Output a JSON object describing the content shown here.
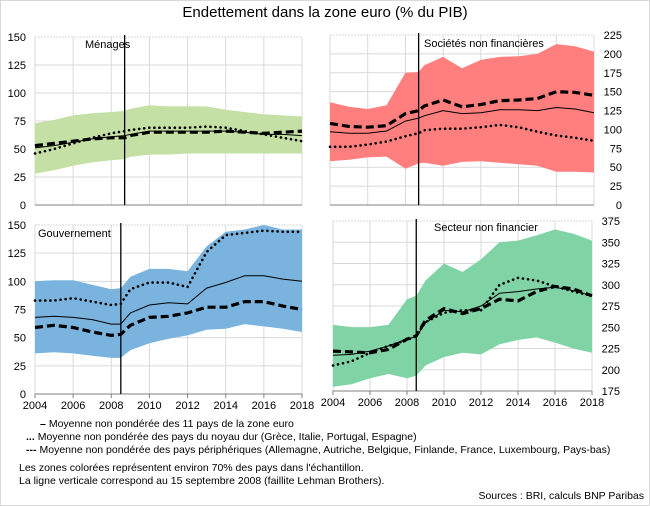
{
  "title": "Endettement dans la zone euro (% du PIB)",
  "chart_data": [
    {
      "type": "area",
      "title": "Ménages",
      "x_ticks": [
        2004,
        2006,
        2008,
        2010,
        2012,
        2014,
        2016,
        2018
      ],
      "y_ticks": [
        0,
        25,
        50,
        75,
        100,
        125,
        150
      ],
      "xlim": [
        2004,
        2018
      ],
      "ylim": [
        0,
        150
      ],
      "y_axis_side": "left",
      "x_tick_labels_shown": false,
      "grid": true,
      "band_color": "#c5e0a5",
      "vertical_line_x": 2008.7,
      "x": [
        2004,
        2005,
        2006,
        2007,
        2008,
        2008.7,
        2009,
        2010,
        2011,
        2012,
        2013,
        2014,
        2015,
        2016,
        2017,
        2018
      ],
      "band_upper": [
        73,
        76,
        80,
        82,
        83,
        84,
        86,
        89,
        88,
        88,
        88,
        85,
        83,
        81,
        80,
        79
      ],
      "band_lower": [
        28,
        31,
        35,
        38,
        40,
        41,
        43,
        45,
        45,
        46,
        46,
        46,
        46,
        46,
        46,
        46
      ],
      "series": [
        {
          "name": "Moyenne non pondérée des 11 pays de la zone euro",
          "style": "solid",
          "values": [
            51,
            53,
            56,
            59,
            61,
            62,
            63,
            66,
            66,
            66,
            66,
            66,
            65,
            63,
            63,
            62
          ]
        },
        {
          "name": "Moyenne non pondérée des pays du noyau dur",
          "style": "dotted",
          "values": [
            46,
            50,
            55,
            60,
            64,
            66,
            67,
            69,
            69,
            69,
            70,
            69,
            66,
            63,
            60,
            57
          ]
        },
        {
          "name": "Moyenne non pondérée des pays périphériques",
          "style": "dashed",
          "values": [
            53,
            55,
            57,
            59,
            60,
            60,
            62,
            65,
            65,
            65,
            65,
            66,
            65,
            64,
            65,
            66
          ]
        }
      ]
    },
    {
      "type": "area",
      "title": "Sociétés non  financières",
      "x_ticks": [
        2004,
        2006,
        2008,
        2010,
        2012,
        2014,
        2016,
        2018
      ],
      "y_ticks": [
        0,
        25,
        50,
        75,
        100,
        125,
        150,
        175,
        200,
        225
      ],
      "xlim": [
        2004,
        2018
      ],
      "ylim": [
        0,
        225
      ],
      "y_axis_side": "right",
      "x_tick_labels_shown": false,
      "grid": true,
      "band_color": "#ff7f7f",
      "vertical_line_x": 2008.7,
      "x": [
        2004,
        2005,
        2006,
        2007,
        2008,
        2008.7,
        2009,
        2010,
        2011,
        2012,
        2013,
        2014,
        2015,
        2016,
        2017,
        2018
      ],
      "band_upper": [
        136,
        130,
        127,
        132,
        175,
        176,
        185,
        196,
        181,
        192,
        196,
        197,
        200,
        213,
        210,
        203
      ],
      "band_lower": [
        58,
        60,
        63,
        64,
        48,
        55,
        56,
        52,
        57,
        58,
        56,
        54,
        52,
        44,
        44,
        43
      ],
      "series": [
        {
          "name": "Moyenne non pondérée des 11 pays de la zone euro",
          "style": "solid",
          "values": [
            97,
            95,
            95,
            98,
            111,
            115,
            118,
            125,
            121,
            122,
            126,
            126,
            125,
            129,
            127,
            122
          ]
        },
        {
          "name": "Moyenne non pondérée des pays du noyau dur",
          "style": "dotted",
          "values": [
            77,
            77,
            80,
            84,
            91,
            95,
            99,
            101,
            101,
            103,
            106,
            103,
            97,
            92,
            89,
            85
          ]
        },
        {
          "name": "Moyenne non pondérée des pays périphériques",
          "style": "dashed",
          "values": [
            108,
            104,
            103,
            105,
            121,
            125,
            131,
            139,
            130,
            133,
            138,
            139,
            141,
            150,
            149,
            145
          ]
        }
      ]
    },
    {
      "type": "area",
      "title": "Gouvernement",
      "x_ticks": [
        2004,
        2006,
        2008,
        2010,
        2012,
        2014,
        2016,
        2018
      ],
      "y_ticks": [
        0,
        25,
        50,
        75,
        100,
        125,
        150
      ],
      "xlim": [
        2004,
        2018
      ],
      "ylim": [
        0,
        150
      ],
      "y_axis_side": "left",
      "x_tick_labels_shown": true,
      "grid": true,
      "band_color": "#79b3de",
      "vertical_line_x": 2008.5,
      "x": [
        2004,
        2005,
        2006,
        2007,
        2008,
        2008.5,
        2009,
        2010,
        2011,
        2012,
        2013,
        2014,
        2015,
        2016,
        2017,
        2018
      ],
      "band_upper": [
        100,
        101,
        101,
        97,
        93,
        94,
        104,
        111,
        111,
        109,
        131,
        144,
        146,
        150,
        146,
        146
      ],
      "band_lower": [
        36,
        37,
        36,
        34,
        32,
        32,
        39,
        45,
        49,
        52,
        57,
        58,
        62,
        60,
        58,
        55
      ],
      "series": [
        {
          "name": "Moyenne non pondérée des 11 pays de la zone euro",
          "style": "solid",
          "values": [
            68,
            69,
            68,
            66,
            62,
            62,
            72,
            79,
            81,
            80,
            94,
            99,
            105,
            105,
            102,
            100
          ]
        },
        {
          "name": "Moyenne non pondérée des pays du noyau dur",
          "style": "dotted",
          "values": [
            83,
            83,
            85,
            82,
            79,
            80,
            93,
            99,
            99,
            95,
            126,
            141,
            143,
            145,
            144,
            144
          ]
        },
        {
          "name": "Moyenne non pondérée des pays périphériques",
          "style": "dashed",
          "values": [
            59,
            61,
            59,
            55,
            52,
            53,
            61,
            68,
            69,
            72,
            77,
            77,
            82,
            82,
            78,
            75
          ]
        }
      ]
    },
    {
      "type": "area",
      "title": "Secteur non financier",
      "x_ticks": [
        2004,
        2006,
        2008,
        2010,
        2012,
        2014,
        2016,
        2018
      ],
      "y_ticks": [
        175,
        200,
        225,
        250,
        275,
        300,
        325,
        350,
        375
      ],
      "xlim": [
        2004,
        2018
      ],
      "ylim": [
        175,
        375
      ],
      "y_axis_side": "right",
      "x_tick_labels_shown": true,
      "grid": true,
      "band_color": "#7fd3a5",
      "vertical_line_x": 2008.5,
      "x": [
        2004,
        2005,
        2006,
        2007,
        2008,
        2008.5,
        2009,
        2010,
        2011,
        2012,
        2013,
        2014,
        2015,
        2016,
        2017,
        2018
      ],
      "band_upper": [
        253,
        250,
        250,
        253,
        283,
        287,
        305,
        325,
        315,
        330,
        350,
        352,
        358,
        365,
        360,
        352
      ],
      "band_lower": [
        180,
        183,
        190,
        195,
        190,
        193,
        205,
        215,
        220,
        218,
        230,
        235,
        238,
        232,
        225,
        220
      ],
      "series": [
        {
          "name": "Moyenne non pondérée des 11 pays de la zone euro",
          "style": "solid",
          "values": [
            217,
            218,
            222,
            228,
            236,
            239,
            255,
            270,
            268,
            275,
            290,
            292,
            295,
            297,
            293,
            287
          ]
        },
        {
          "name": "Moyenne non pondérée des pays du noyau dur",
          "style": "dotted",
          "values": [
            205,
            210,
            220,
            228,
            235,
            240,
            256,
            267,
            270,
            270,
            300,
            308,
            305,
            298,
            292,
            287
          ]
        },
        {
          "name": "Moyenne non pondérée des pays périphériques",
          "style": "dashed",
          "values": [
            222,
            221,
            220,
            224,
            236,
            240,
            258,
            272,
            266,
            272,
            283,
            281,
            292,
            298,
            295,
            287
          ]
        }
      ]
    }
  ],
  "legend": {
    "items": [
      {
        "symbol": "–",
        "label": "Moyenne non pondérée des 11 pays de la zone euro"
      },
      {
        "symbol": "...",
        "label": "Moyenne non pondérée des pays du noyau dur (Grèce, Italie,  Portugal,  Espagne)"
      },
      {
        "symbol": "---",
        "label": "Moyenne non pondérée des pays périphériques (Allemagne, Autriche, Belgique, Finlande,  France, Luxembourg, Pays-bas)"
      }
    ]
  },
  "notes": [
    "Les zones colorées représentent environ 70% des pays dans l'échantillon.",
    "La ligne verticale correspond au 15 septembre 2008  (faillite Lehman Brothers)."
  ],
  "source": "Sources : BRI, calculs BNP Paribas"
}
